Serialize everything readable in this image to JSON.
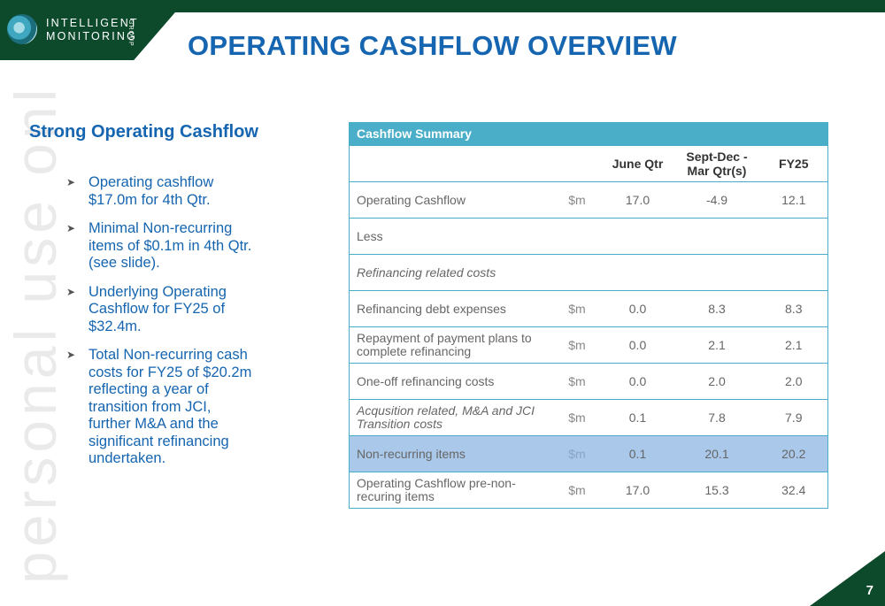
{
  "logo": {
    "line1": "INTELLIGENT",
    "line2": "MONITORING",
    "group": "GROUP"
  },
  "title": "OPERATING CASHFLOW OVERVIEW",
  "watermark": "personal use only",
  "left": {
    "heading": "Strong Operating Cashflow",
    "bullets": [
      "Operating cashflow $17.0m for 4th Qtr.",
      "Minimal Non-recurring items of $0.1m in 4th Qtr. (see slide).",
      "Underlying Operating Cashflow for FY25 of $32.4m.",
      "Total Non-recurring cash costs for FY25 of $20.2m reflecting a year of transition from JCI, further M&A and the significant refinancing undertaken."
    ]
  },
  "table": {
    "title": "Cashflow Summary",
    "columns": [
      "",
      "",
      "June Qtr",
      "Sept-Dec - Mar Qtr(s)",
      "FY25"
    ],
    "rows": [
      {
        "label": "Operating Cashflow",
        "unit": "$m",
        "june": "17.0",
        "sept": "-4.9",
        "fy": "12.1"
      },
      {
        "label": "Less",
        "unit": "",
        "june": "",
        "sept": "",
        "fy": ""
      },
      {
        "label": "Refinancing related costs",
        "unit": "",
        "june": "",
        "sept": "",
        "fy": ""
      },
      {
        "label": "Refinancing debt expenses",
        "unit": "$m",
        "june": "0.0",
        "sept": "8.3",
        "fy": "8.3"
      },
      {
        "label": "Repayment of payment plans to complete refinancing",
        "unit": "$m",
        "june": "0.0",
        "sept": "2.1",
        "fy": "2.1"
      },
      {
        "label": "One-off refinancing costs",
        "unit": "$m",
        "june": "0.0",
        "sept": "2.0",
        "fy": "2.0"
      },
      {
        "label": "Acqusition related, M&A and JCI Transition costs",
        "unit": "$m",
        "june": "0.1",
        "sept": "7.8",
        "fy": "7.9"
      },
      {
        "label": "Non-recurring items",
        "unit": "$m",
        "june": "0.1",
        "sept": "20.1",
        "fy": "20.2"
      },
      {
        "label": "Operating Cashflow pre-non-recuring items",
        "unit": "$m",
        "june": "17.0",
        "sept": "15.3",
        "fy": "32.4"
      }
    ]
  },
  "page_number": "7",
  "colors": {
    "brand_green": "#0d4a2c",
    "title_blue": "#1565b0",
    "table_header": "#4aaec8",
    "highlight_row": "#a9c8ea"
  }
}
